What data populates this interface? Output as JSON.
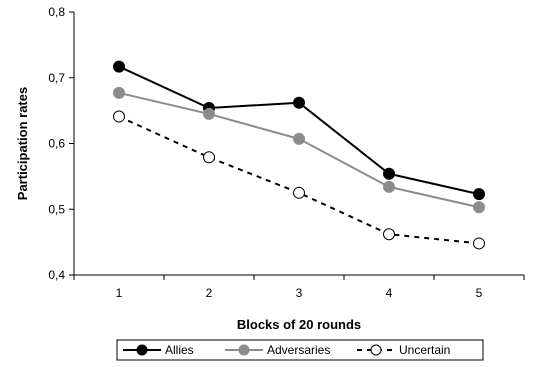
{
  "chart_data": {
    "type": "line",
    "title": "",
    "xlabel": "Blocks of 20 rounds",
    "ylabel": "Participation rates",
    "x": [
      1,
      2,
      3,
      4,
      5
    ],
    "xtick_labels": [
      "1",
      "2",
      "3",
      "4",
      "5"
    ],
    "ylim": [
      0.4,
      0.8
    ],
    "yticks": [
      0.4,
      0.5,
      0.6,
      0.7,
      0.8
    ],
    "ytick_labels": [
      "0,4",
      "0,5",
      "0,6",
      "0,7",
      "0,8"
    ],
    "grid": false,
    "legend_position": "bottom",
    "series": [
      {
        "name": "Allies",
        "values": [
          0.717,
          0.654,
          0.662,
          0.554,
          0.523
        ],
        "color": "#000000",
        "line_style": "solid",
        "marker": "filled-circle",
        "marker_fill": "#000000"
      },
      {
        "name": "Adversaries",
        "values": [
          0.677,
          0.645,
          0.607,
          0.534,
          0.503
        ],
        "color": "#8c8c8c",
        "line_style": "solid",
        "marker": "filled-circle",
        "marker_fill": "#8c8c8c"
      },
      {
        "name": "Uncertain",
        "values": [
          0.641,
          0.579,
          0.525,
          0.462,
          0.448
        ],
        "color": "#000000",
        "line_style": "dashed",
        "marker": "open-circle",
        "marker_fill": "#ffffff"
      }
    ]
  }
}
